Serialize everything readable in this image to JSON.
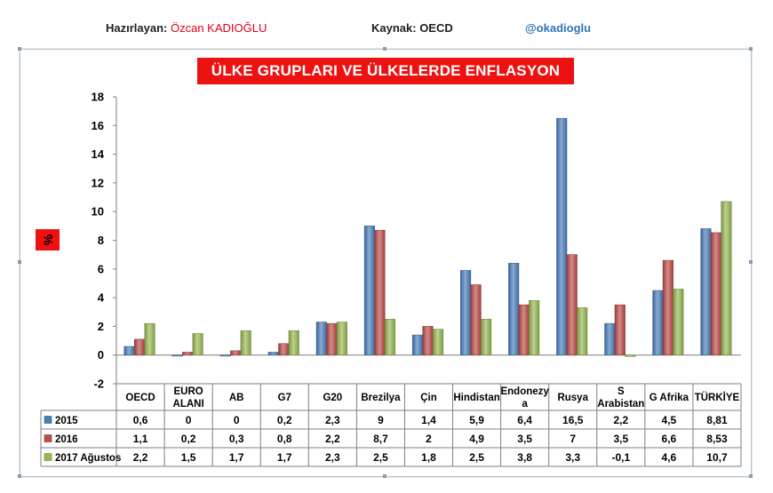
{
  "header": {
    "author_label": "Hazırlayan:",
    "author_name": "Özcan KADIOĞLU",
    "source": "Kaynak: OECD",
    "handle": "@okadioglu"
  },
  "chart_data": {
    "type": "bar",
    "title": "ÜLKE GRUPLARI VE ÜLKELERDE ENFLASYON (%)",
    "xlabel": "",
    "ylabel": "%",
    "ylim": [
      -2,
      18
    ],
    "yticks": [
      -2,
      0,
      2,
      4,
      6,
      8,
      10,
      12,
      14,
      16,
      18
    ],
    "grid": false,
    "legend": "data-table",
    "categories": [
      "OECD",
      "EURO ALANI",
      "AB",
      "G7",
      "G20",
      "Brezilya",
      "Çin",
      "Hindistan",
      "Endonezy a",
      "Rusya",
      "S Arabistan",
      "G Afrika",
      "TÜRKİYE"
    ],
    "category_lines": [
      [
        "OECD"
      ],
      [
        "EURO",
        "ALANI"
      ],
      [
        "AB"
      ],
      [
        "G7"
      ],
      [
        "G20"
      ],
      [
        "Brezilya"
      ],
      [
        "Çin"
      ],
      [
        "Hindistan"
      ],
      [
        "Endonezy",
        "a"
      ],
      [
        "Rusya"
      ],
      [
        "S",
        "Arabistan"
      ],
      [
        "G Afrika"
      ],
      [
        "TÜRKİYE"
      ]
    ],
    "series": [
      {
        "name": "2015",
        "color": "#4a7ebb",
        "values": [
          0.6,
          0,
          0,
          0.2,
          2.3,
          9,
          1.4,
          5.9,
          6.4,
          16.5,
          2.2,
          4.5,
          8.81
        ],
        "labels": [
          "0,6",
          "0",
          "0",
          "0,2",
          "2,3",
          "9",
          "1,4",
          "5,9",
          "6,4",
          "16,5",
          "2,2",
          "4,5",
          "8,81"
        ]
      },
      {
        "name": "2016",
        "color": "#be4b48",
        "values": [
          1.1,
          0.2,
          0.3,
          0.8,
          2.2,
          8.7,
          2,
          4.9,
          3.5,
          7,
          3.5,
          6.6,
          8.53
        ],
        "labels": [
          "1,1",
          "0,2",
          "0,3",
          "0,8",
          "2,2",
          "8,7",
          "2",
          "4,9",
          "3,5",
          "7",
          "3,5",
          "6,6",
          "8,53"
        ]
      },
      {
        "name": "2017 Ağustos",
        "color": "#98b954",
        "values": [
          2.2,
          1.5,
          1.7,
          1.7,
          2.3,
          2.5,
          1.8,
          2.5,
          3.8,
          3.3,
          -0.1,
          4.6,
          10.7
        ],
        "labels": [
          "2,2",
          "1,5",
          "1,7",
          "1,7",
          "2,3",
          "2,5",
          "1,8",
          "2,5",
          "3,8",
          "3,3",
          "-0,1",
          "4,6",
          "10,7"
        ]
      }
    ]
  }
}
